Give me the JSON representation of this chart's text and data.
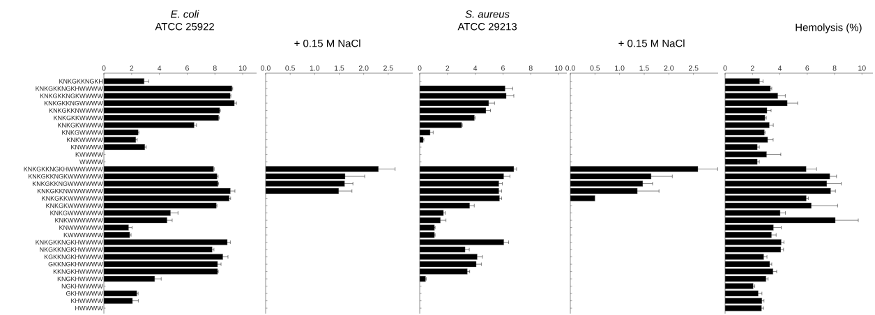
{
  "chart_data": [
    {
      "type": "bar",
      "orientation": "horizontal",
      "title": "*E. coli*",
      "subtitle": "ATCC 25922",
      "color": "#000000",
      "xlim": [
        0,
        11
      ],
      "xticks": [
        0,
        2,
        4,
        6,
        8,
        10
      ],
      "categories": [
        "KNKGKKNGKH",
        "KNKGKKNGKHWWWW",
        "KNKGKKNGKWWWW",
        "KNKGKKNGWWWW",
        "KNKGKKNWWWW",
        "KNKGKKWWWW",
        "KNKGKWWWW",
        "KNKGWWWW",
        "KNKWWWW",
        "KNWWWW",
        "KWWWW",
        "WWWW",
        "KNKGKKNGKHWWWWWW",
        "KNKGKKNGKWWWWWW",
        "KNKGKKNGWWWWWW",
        "KNKGKKNWWWWWW",
        "KNKGKKWWWWWW",
        "KNKGKWWWWWW",
        "KNKGWWWWWW",
        "KNKWWWWWW",
        "KNWWWWWW",
        "KWWWWWW",
        "KNKGKKNGKHWWWW",
        "NKGKKNGKHWWWW",
        "KGKKNGKHWWWW",
        "GKKNGKHWWWW",
        "KKNGKHWWWW",
        "KNGKHWWWW",
        "NGKHWWWW",
        "GKHWWWW",
        "KHWWWW",
        "HWWWW"
      ],
      "values": [
        2.9,
        9.23,
        9.1,
        9.4,
        8.34,
        8.27,
        6.5,
        2.47,
        2.3,
        2.95,
        null,
        null,
        7.9,
        8.15,
        8.22,
        9.11,
        9.03,
        8.1,
        4.8,
        4.55,
        1.78,
        1.86,
        8.89,
        7.8,
        8.57,
        8.19,
        8.19,
        3.66,
        null,
        2.37,
        2.06,
        null
      ],
      "errors": [
        0.33,
        0.05,
        0.05,
        0.15,
        0.05,
        0.05,
        0.17,
        0.05,
        0.1,
        0.1,
        null,
        null,
        0.05,
        0.08,
        0.05,
        0.33,
        0.1,
        0.05,
        0.54,
        0.37,
        0.25,
        0.1,
        0.22,
        0.13,
        0.37,
        0.25,
        0.05,
        0.47,
        null,
        0.1,
        0.42,
        null
      ]
    },
    {
      "type": "bar",
      "orientation": "horizontal",
      "title": "+ 0.15 M NaCl",
      "color": "#000000",
      "xlim": [
        0,
        3
      ],
      "xticks": [
        {
          "value": 0,
          "label": "0.0"
        },
        {
          "value": 0.5,
          "label": "0.5"
        },
        {
          "value": 1,
          "label": "1.0"
        },
        {
          "value": 1.5,
          "label": "1.5"
        },
        {
          "value": 2,
          "label": "2.0"
        },
        {
          "value": 2.5,
          "label": "2.5"
        }
      ],
      "tick_labels": "x",
      "categories": [
        null,
        null,
        null,
        null,
        null,
        null,
        null,
        null,
        null,
        null,
        null,
        null,
        null,
        null,
        null,
        null,
        null,
        null,
        null,
        null,
        null,
        null,
        null,
        null,
        null,
        null,
        null,
        null,
        null,
        null,
        null,
        null
      ],
      "values": [
        null,
        null,
        null,
        null,
        null,
        null,
        null,
        null,
        null,
        null,
        null,
        null,
        2.3,
        1.62,
        1.61,
        1.49,
        null,
        null,
        null,
        null,
        null,
        null,
        null,
        null,
        null,
        null,
        null,
        null,
        null,
        null,
        null,
        null
      ],
      "errors": [
        null,
        null,
        null,
        null,
        null,
        null,
        null,
        null,
        null,
        null,
        null,
        null,
        0.34,
        0.4,
        0.17,
        0.27,
        null,
        null,
        null,
        null,
        null,
        null,
        null,
        null,
        null,
        null,
        null,
        null,
        null,
        null,
        null,
        null
      ]
    },
    {
      "type": "bar",
      "orientation": "horizontal",
      "title": "*S. aureus*",
      "subtitle": "ATCC 29213",
      "color": "#000000",
      "xlim": [
        0,
        10.6
      ],
      "xticks": [
        0,
        2,
        4,
        6,
        8,
        10
      ],
      "tick_labels": "x",
      "categories": [
        null,
        null,
        null,
        null,
        null,
        null,
        null,
        null,
        null,
        null,
        null,
        null,
        null,
        null,
        null,
        null,
        null,
        null,
        null,
        null,
        null,
        null,
        null,
        null,
        null,
        null,
        null,
        null,
        null,
        null,
        null,
        null
      ],
      "values": [
        null,
        6.15,
        6.23,
        4.97,
        4.77,
        3.94,
        3.02,
        0.75,
        0.25,
        null,
        null,
        null,
        6.78,
        6.05,
        5.7,
        5.7,
        5.75,
        3.6,
        1.71,
        1.49,
        1.06,
        1.06,
        6.06,
        3.27,
        4.14,
        4.07,
        3.43,
        0.42,
        null,
        null,
        null,
        null
      ],
      "errors": [
        null,
        0.55,
        0.55,
        0.42,
        0.33,
        0.05,
        0.05,
        0.22,
        0.05,
        null,
        null,
        null,
        0.2,
        0.45,
        0.25,
        0.2,
        0.15,
        0.33,
        0.13,
        0.4,
        0.05,
        0.05,
        0.35,
        0.3,
        0.38,
        0.37,
        0.17,
        0.05,
        null,
        null,
        null,
        null
      ]
    },
    {
      "type": "bar",
      "orientation": "horizontal",
      "title": "+ 0.15 M NaCl",
      "color": "#000000",
      "xlim": [
        0,
        3
      ],
      "xticks": [
        {
          "value": 0,
          "label": "0.0"
        },
        {
          "value": 0.5,
          "label": "0.5"
        },
        {
          "value": 1,
          "label": "1.0"
        },
        {
          "value": 1.5,
          "label": "1.5"
        },
        {
          "value": 2,
          "label": "2.0"
        },
        {
          "value": 2.5,
          "label": "2.5"
        }
      ],
      "tick_labels": "x",
      "categories": [
        null,
        null,
        null,
        null,
        null,
        null,
        null,
        null,
        null,
        null,
        null,
        null,
        null,
        null,
        null,
        null,
        null,
        null,
        null,
        null,
        null,
        null,
        null,
        null,
        null,
        null,
        null,
        null,
        null,
        null,
        null,
        null
      ],
      "values": [
        null,
        null,
        null,
        null,
        null,
        null,
        null,
        null,
        null,
        null,
        null,
        null,
        2.59,
        1.64,
        1.47,
        1.36,
        0.5,
        null,
        null,
        null,
        null,
        null,
        null,
        null,
        null,
        null,
        null,
        null,
        null,
        null,
        null,
        null
      ],
      "errors": [
        null,
        null,
        null,
        null,
        null,
        null,
        null,
        null,
        null,
        null,
        null,
        null,
        0.4,
        0.43,
        0.2,
        0.44,
        null,
        null,
        null,
        null,
        null,
        null,
        null,
        null,
        null,
        null,
        null,
        null,
        null,
        null,
        null,
        null
      ]
    },
    {
      "type": "bar",
      "orientation": "horizontal",
      "title": "Hemolysis (%)",
      "color": "#000000",
      "xlim": [
        0,
        10.8
      ],
      "xticks": [
        0,
        2,
        4,
        6,
        8,
        10
      ],
      "tick_labels": "x",
      "categories": [
        null,
        null,
        null,
        null,
        null,
        null,
        null,
        null,
        null,
        null,
        null,
        null,
        null,
        null,
        null,
        null,
        null,
        null,
        null,
        null,
        null,
        null,
        null,
        null,
        null,
        null,
        null,
        null,
        null,
        null,
        null,
        null
      ],
      "values": [
        2.52,
        3.31,
        3.85,
        4.54,
        3.06,
        2.91,
        3.23,
        2.87,
        3.11,
        2.35,
        3.03,
        2.35,
        5.92,
        7.65,
        7.43,
        7.71,
        5.93,
        6.3,
        4.02,
        8.05,
        3.53,
        3.39,
        4.1,
        4.07,
        2.82,
        3.26,
        3.5,
        2.99,
        2.05,
        2.42,
        2.69,
        2.66
      ],
      "errors": [
        0.25,
        0.1,
        0.55,
        0.76,
        0.3,
        0.1,
        0.29,
        0.05,
        0.4,
        0.15,
        1.04,
        0.15,
        0.76,
        0.49,
        1.06,
        0.35,
        0.15,
        1.92,
        0.39,
        1.68,
        0.57,
        0.34,
        0.2,
        0.2,
        0.24,
        0.15,
        0.27,
        0.15,
        0.12,
        0.27,
        0.15,
        0.15
      ]
    }
  ]
}
